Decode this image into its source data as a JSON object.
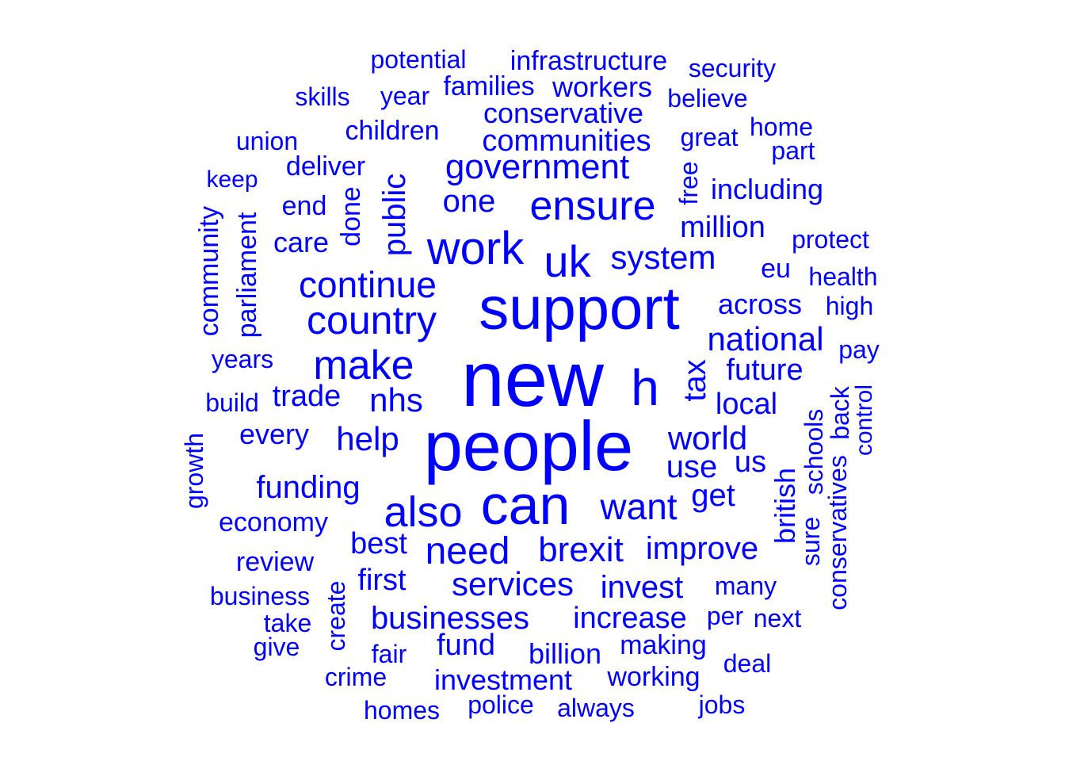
{
  "color": "#0000ff",
  "words": [
    {
      "t": "new",
      "v": false
    },
    {
      "t": "people",
      "v": false
    },
    {
      "t": "support",
      "v": false
    },
    {
      "t": "can",
      "v": false
    },
    {
      "t": "also",
      "v": false
    },
    {
      "t": "h",
      "v": false
    },
    {
      "t": "work",
      "v": false
    },
    {
      "t": "uk",
      "v": false
    },
    {
      "t": "ensure",
      "v": false
    },
    {
      "t": "make",
      "v": false
    },
    {
      "t": "country",
      "v": false
    },
    {
      "t": "continue",
      "v": false
    },
    {
      "t": "government",
      "v": false
    },
    {
      "t": "need",
      "v": false
    },
    {
      "t": "want",
      "v": false
    },
    {
      "t": "brexit",
      "v": false
    },
    {
      "t": "system",
      "v": false
    },
    {
      "t": "services",
      "v": false
    },
    {
      "t": "help",
      "v": false
    },
    {
      "t": "nhs",
      "v": false
    },
    {
      "t": "national",
      "v": false
    },
    {
      "t": "world",
      "v": false
    },
    {
      "t": "one",
      "v": false
    },
    {
      "t": "businesses",
      "v": false
    },
    {
      "t": "improve",
      "v": false
    },
    {
      "t": "tax",
      "v": true
    },
    {
      "t": "public",
      "v": true
    },
    {
      "t": "funding",
      "v": false
    },
    {
      "t": "communities",
      "v": false
    },
    {
      "t": "invest",
      "v": false
    },
    {
      "t": "increase",
      "v": false
    },
    {
      "t": "conservative",
      "v": false
    },
    {
      "t": "trade",
      "v": false
    },
    {
      "t": "local",
      "v": false
    },
    {
      "t": "future",
      "v": false
    },
    {
      "t": "million",
      "v": false
    },
    {
      "t": "use",
      "v": false
    },
    {
      "t": "get",
      "v": false
    },
    {
      "t": "best",
      "v": false
    },
    {
      "t": "children",
      "v": false
    },
    {
      "t": "across",
      "v": false
    },
    {
      "t": "fund",
      "v": false
    },
    {
      "t": "billion",
      "v": false
    },
    {
      "t": "investment",
      "v": false
    },
    {
      "t": "first",
      "v": false
    },
    {
      "t": "every",
      "v": false
    },
    {
      "t": "including",
      "v": false
    },
    {
      "t": "workers",
      "v": false
    },
    {
      "t": "families",
      "v": false
    },
    {
      "t": "infrastructure",
      "v": false
    },
    {
      "t": "potential",
      "v": false
    },
    {
      "t": "security",
      "v": false
    },
    {
      "t": "year",
      "v": false
    },
    {
      "t": "skills",
      "v": false
    },
    {
      "t": "believe",
      "v": false
    },
    {
      "t": "great",
      "v": false
    },
    {
      "t": "home",
      "v": false
    },
    {
      "t": "part",
      "v": false
    },
    {
      "t": "union",
      "v": false
    },
    {
      "t": "deliver",
      "v": false
    },
    {
      "t": "keep",
      "v": false
    },
    {
      "t": "end",
      "v": false
    },
    {
      "t": "care",
      "v": false
    },
    {
      "t": "done",
      "v": true
    },
    {
      "t": "free",
      "v": true
    },
    {
      "t": "protect",
      "v": false
    },
    {
      "t": "eu",
      "v": false
    },
    {
      "t": "health",
      "v": false
    },
    {
      "t": "high",
      "v": false
    },
    {
      "t": "pay",
      "v": false
    },
    {
      "t": "years",
      "v": false
    },
    {
      "t": "build",
      "v": false
    },
    {
      "t": "us",
      "v": false
    },
    {
      "t": "economy",
      "v": false
    },
    {
      "t": "review",
      "v": false
    },
    {
      "t": "business",
      "v": false
    },
    {
      "t": "take",
      "v": false
    },
    {
      "t": "give",
      "v": false
    },
    {
      "t": "fair",
      "v": false
    },
    {
      "t": "crime",
      "v": false
    },
    {
      "t": "homes",
      "v": false
    },
    {
      "t": "police",
      "v": false
    },
    {
      "t": "always",
      "v": false
    },
    {
      "t": "making",
      "v": false
    },
    {
      "t": "working",
      "v": false
    },
    {
      "t": "jobs",
      "v": false
    },
    {
      "t": "deal",
      "v": false
    },
    {
      "t": "per",
      "v": false
    },
    {
      "t": "next",
      "v": false
    },
    {
      "t": "many",
      "v": false
    },
    {
      "t": "community",
      "v": true
    },
    {
      "t": "parliament",
      "v": true
    },
    {
      "t": "growth",
      "v": true
    },
    {
      "t": "create",
      "v": true
    },
    {
      "t": "british",
      "v": true
    },
    {
      "t": "sure",
      "v": true
    },
    {
      "t": "schools",
      "v": true
    },
    {
      "t": "conservatives",
      "v": true
    },
    {
      "t": "back",
      "v": true
    },
    {
      "t": "control",
      "v": true
    }
  ]
}
